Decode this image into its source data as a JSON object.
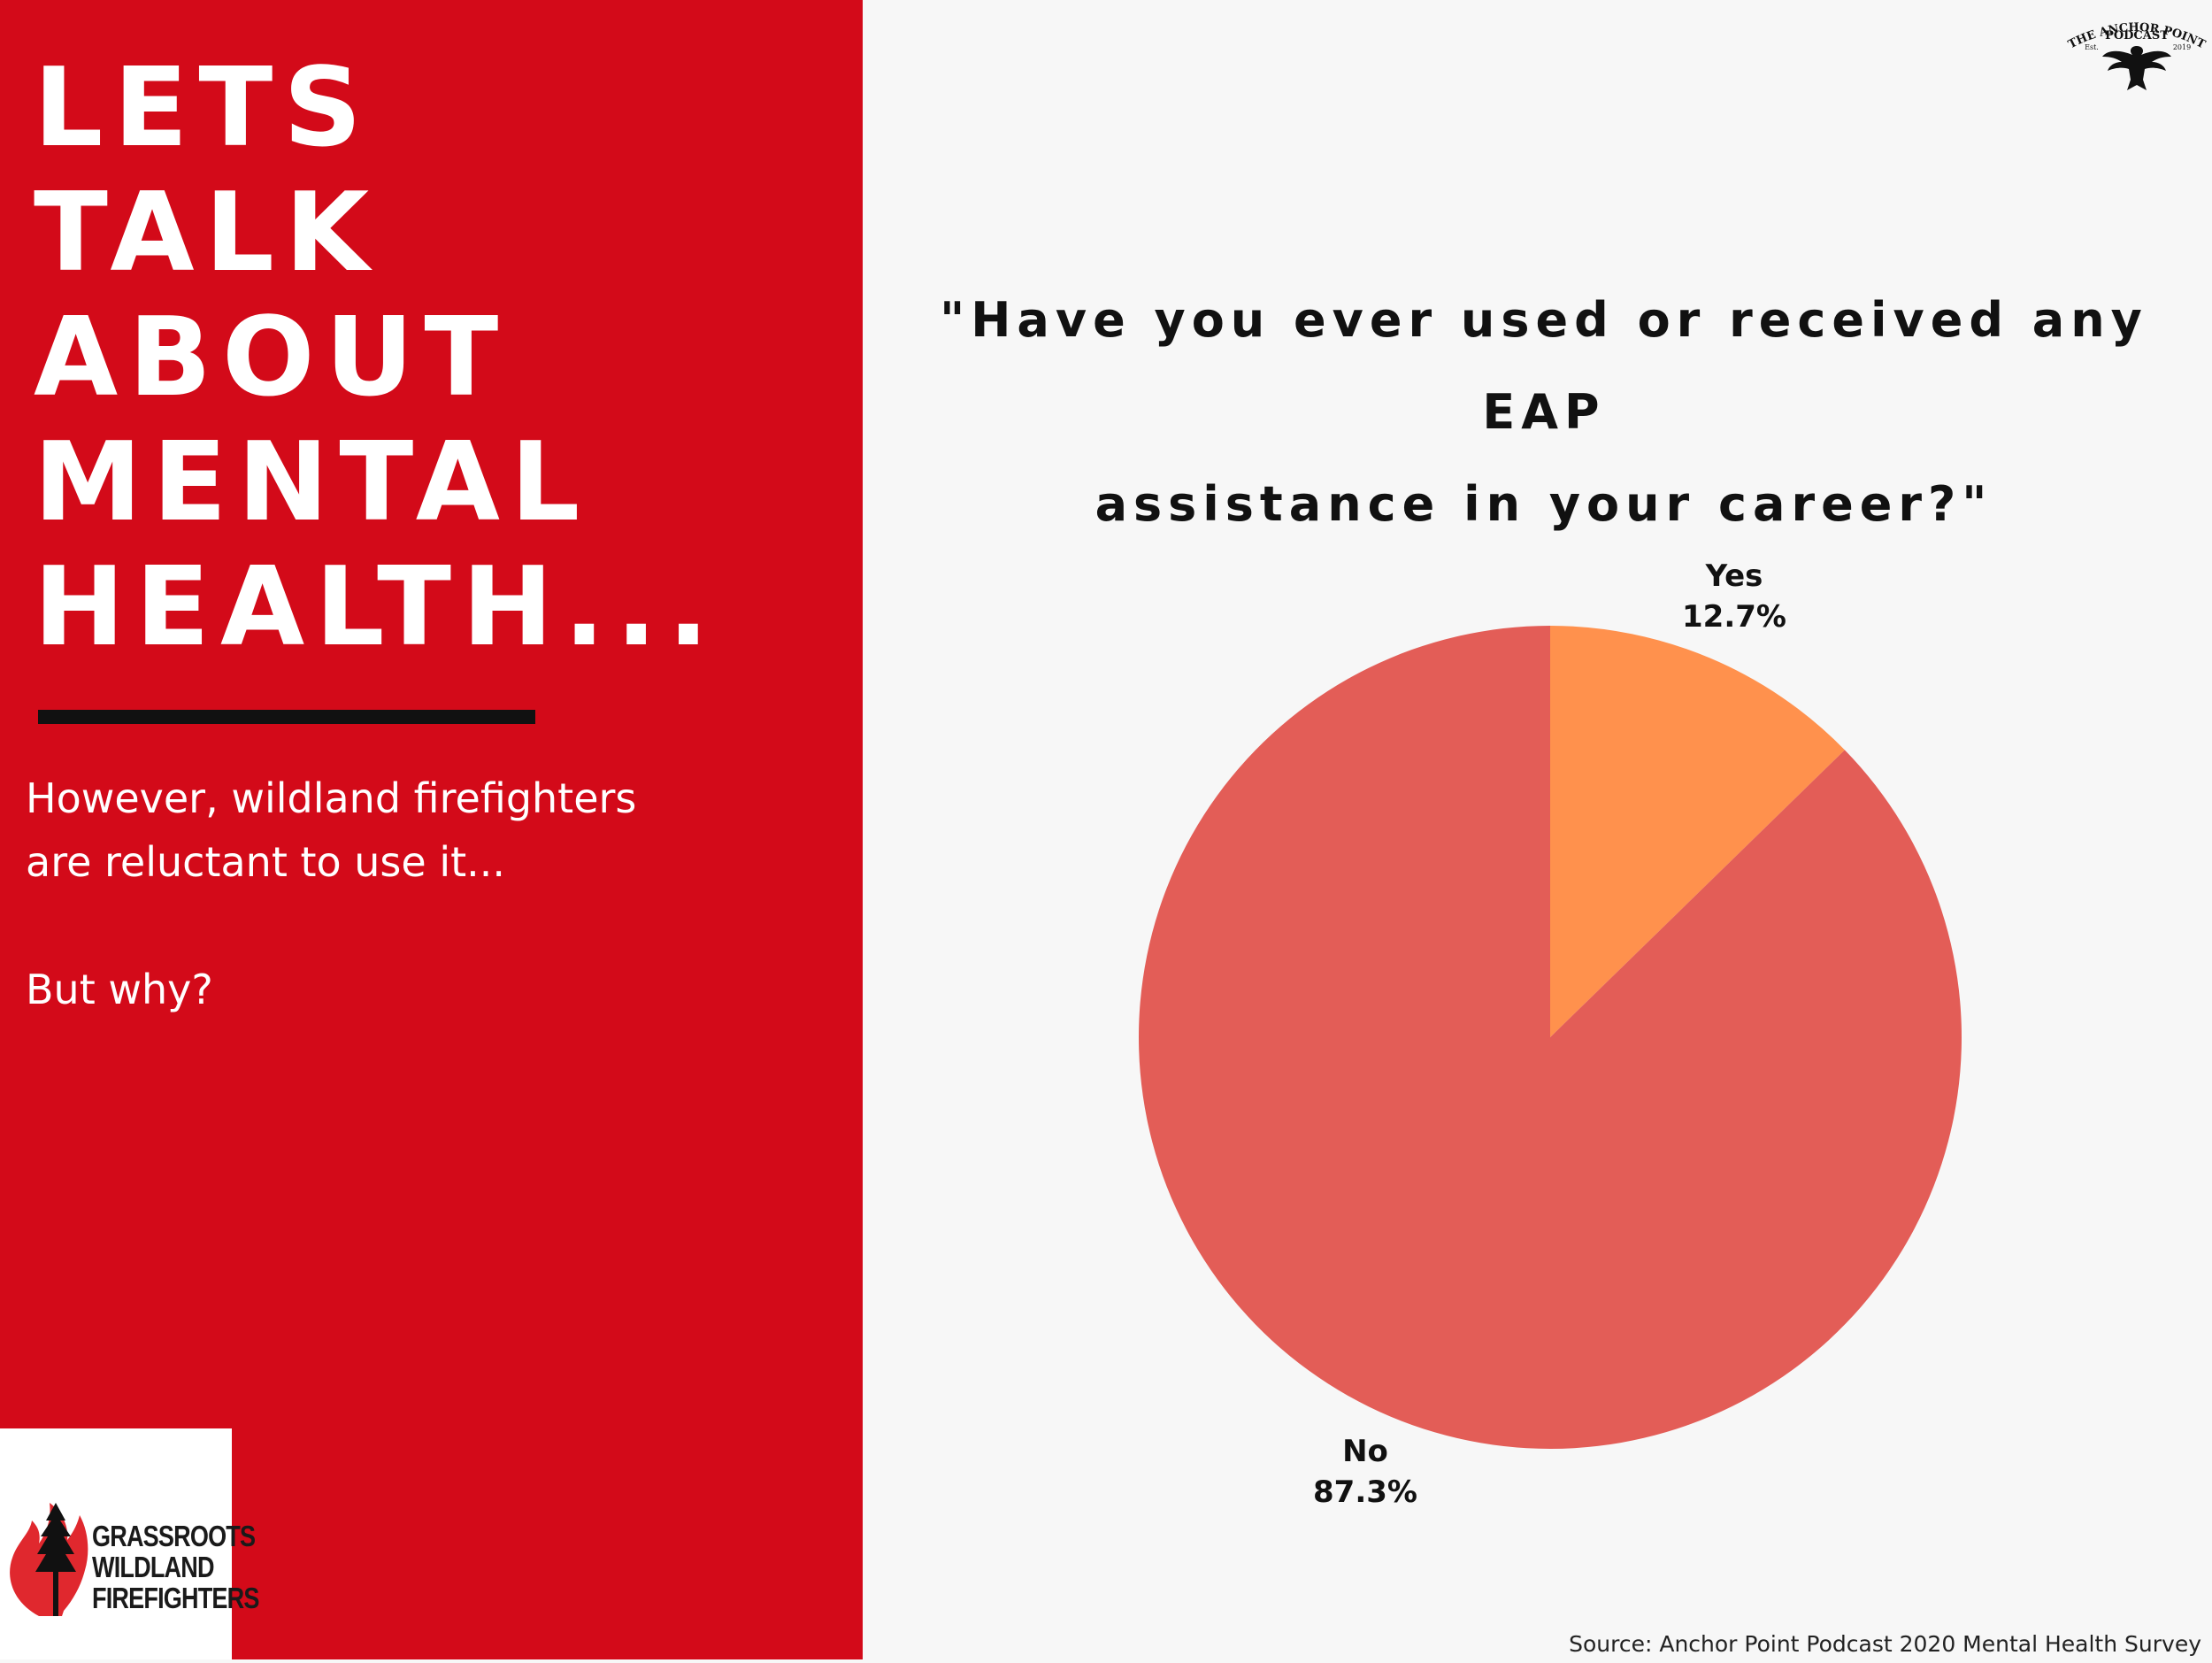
{
  "left_panel": {
    "headline_lines": [
      "LETS",
      "TALK",
      "ABOUT",
      "MENTAL",
      "HEALTH..."
    ],
    "subtext_line1": "However, wildland firefighters",
    "subtext_line2": "are reluctant to use it...",
    "subtext_line3": "But why?",
    "background_color": "#d30a19"
  },
  "logo": {
    "lines": [
      "GRASSROOTS",
      "WILDLAND",
      "FIREFIGHTERS"
    ]
  },
  "badge": {
    "line1": "THE ANCHOR POINT",
    "line2": "PODCAST",
    "est_label": "Est.",
    "year": "2019"
  },
  "question": {
    "line1": "\"Have you ever used or received any EAP",
    "line2": "assistance in your career?\""
  },
  "chart_data": {
    "type": "pie",
    "title": "\"Have you ever used or received any EAP assistance in your career?\"",
    "slices": [
      {
        "label": "Yes",
        "value": 12.7,
        "display": "12.7%",
        "color": "#ff914d"
      },
      {
        "label": "No",
        "value": 87.3,
        "display": "87.3%",
        "color": "#e35d57"
      }
    ],
    "start": "12 o'clock",
    "direction": "clockwise",
    "legend": "none"
  },
  "footer": {
    "source": "Source: Anchor Point Podcast 2020 Mental Health Survey"
  }
}
